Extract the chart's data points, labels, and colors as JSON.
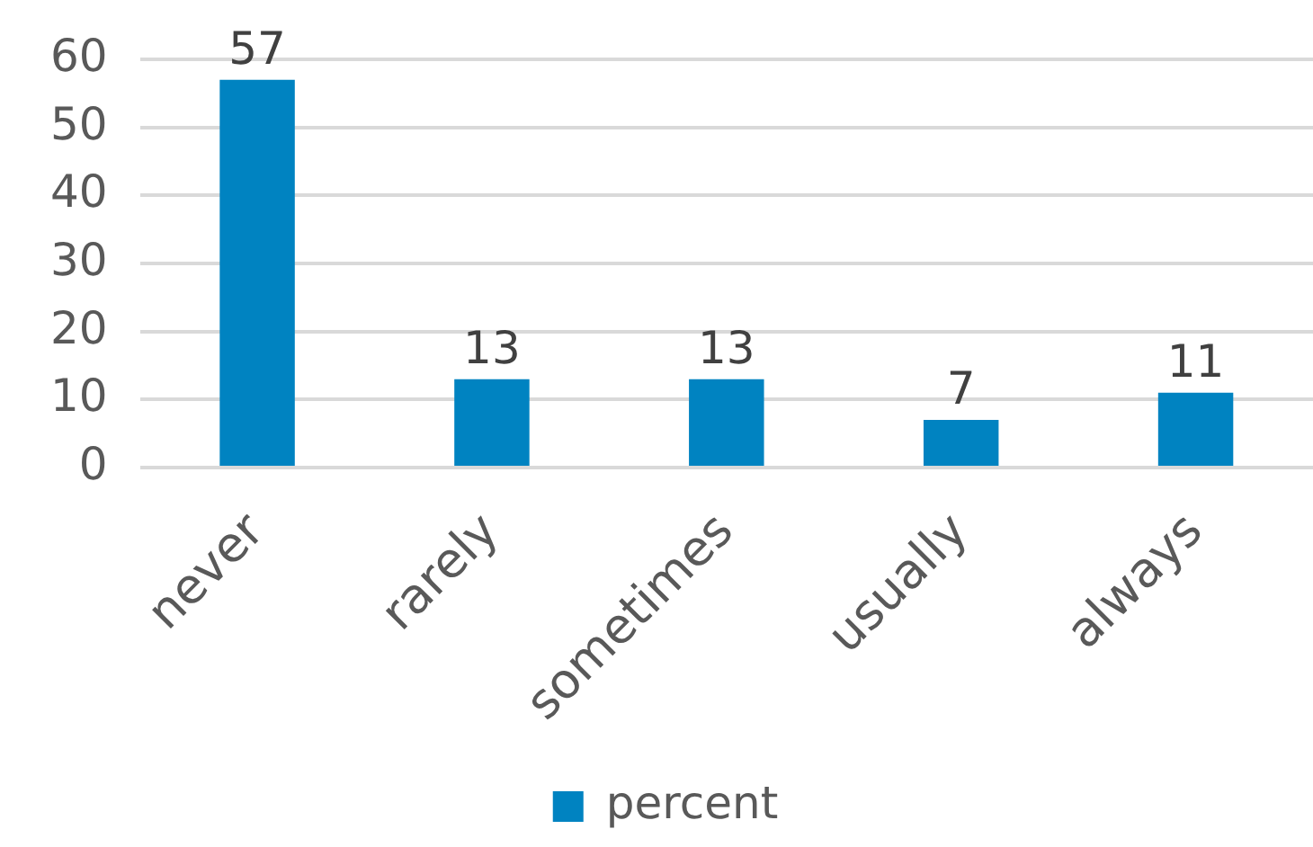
{
  "chart_data": {
    "type": "bar",
    "categories": [
      "never",
      "rarely",
      "sometimes",
      "usually",
      "always"
    ],
    "series": [
      {
        "name": "percent",
        "color": "#0083c1",
        "values": [
          57,
          13,
          13,
          7,
          11
        ]
      }
    ],
    "ylim": [
      0,
      60
    ],
    "yticks": [
      0,
      10,
      20,
      30,
      40,
      50,
      60
    ],
    "grid": "y",
    "legend": "bottom",
    "data_labels": true
  }
}
